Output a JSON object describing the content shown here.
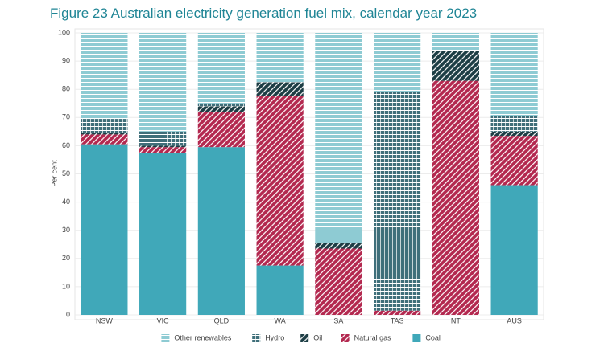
{
  "chart_data": {
    "type": "stacked-bar",
    "title": "Figure 23 Australian electricity generation fuel mix, calendar year 2023",
    "ylabel": "Per cent",
    "categories": [
      "NSW",
      "VIC",
      "QLD",
      "WA",
      "SA",
      "TAS",
      "NT",
      "AUS"
    ],
    "series": [
      {
        "name": "Coal",
        "color": "#40a8b9",
        "pattern": "solid",
        "values": [
          60.5,
          57.5,
          59.5,
          17.5,
          0,
          0,
          0,
          46
        ]
      },
      {
        "name": "Natural gas",
        "color": "#b3284f",
        "pattern": "diagonal",
        "values": [
          3.5,
          2,
          12.5,
          60,
          23.5,
          1.5,
          83,
          17.5
        ]
      },
      {
        "name": "Oil",
        "color": "#1c3d44",
        "pattern": "diagonal",
        "values": [
          0.5,
          0.5,
          2,
          5,
          2,
          0,
          10.5,
          1.5
        ]
      },
      {
        "name": "Hydro",
        "color": "#3f6f7a",
        "pattern": "grid",
        "values": [
          5,
          5,
          1,
          0,
          0,
          77.5,
          0,
          5.5
        ]
      },
      {
        "name": "Other renewables",
        "color": "#8ecbd3",
        "pattern": "horizontal",
        "values": [
          30.5,
          35,
          25,
          17.5,
          74.5,
          21,
          6.5,
          29.5
        ]
      }
    ],
    "ylim": [
      0,
      100
    ],
    "yticks": [
      0,
      10,
      20,
      30,
      40,
      50,
      60,
      70,
      80,
      90,
      100
    ],
    "grid": true,
    "legend": "bottom"
  }
}
